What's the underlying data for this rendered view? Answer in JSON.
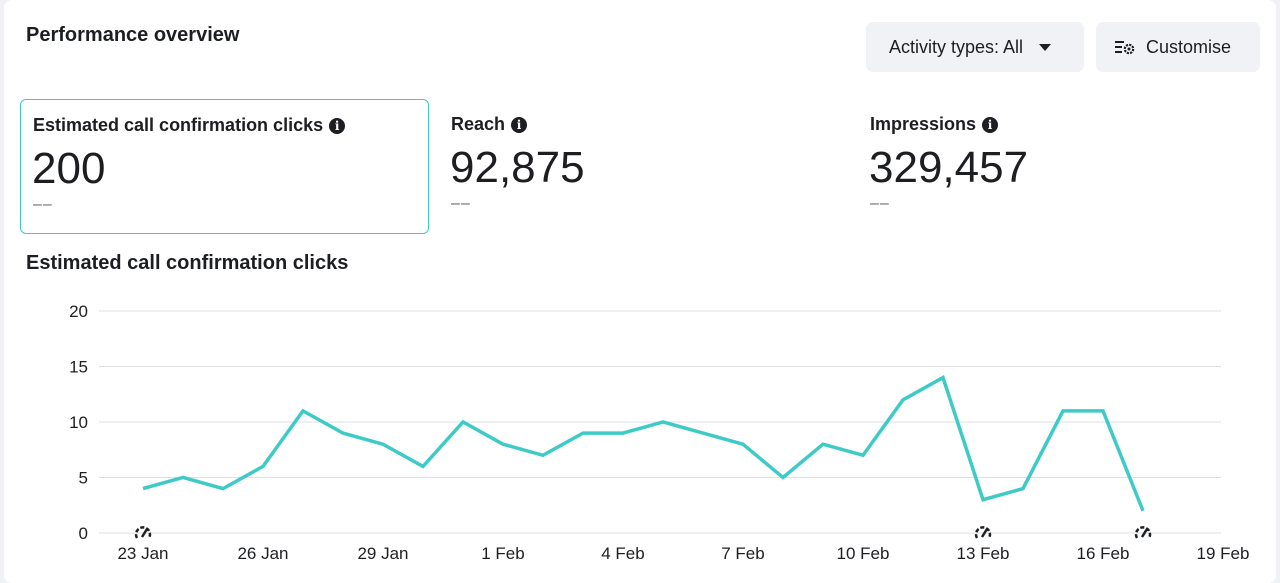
{
  "header": {
    "title": "Performance overview",
    "activity_button": "Activity types: All",
    "customise_button": "Customise"
  },
  "metrics": [
    {
      "label": "Estimated call confirmation clicks",
      "value": "200",
      "delta": "––"
    },
    {
      "label": "Reach",
      "value": "92,875",
      "delta": "––"
    },
    {
      "label": "Impressions",
      "value": "329,457",
      "delta": "––"
    }
  ],
  "colors": {
    "line": "#3ecbc7",
    "grid": "#dddfe2",
    "accent_border": "#3ecbc7"
  },
  "chart_data": {
    "type": "line",
    "title": "Estimated call confirmation clicks",
    "xlabel": "",
    "ylabel": "",
    "ylim": [
      0,
      20
    ],
    "yticks": [
      0,
      5,
      10,
      15,
      20
    ],
    "grid": true,
    "x_tick_labels": [
      "23 Jan",
      "26 Jan",
      "29 Jan",
      "1 Feb",
      "4 Feb",
      "7 Feb",
      "10 Feb",
      "13 Feb",
      "16 Feb",
      "19 Feb"
    ],
    "x": [
      "23 Jan",
      "24 Jan",
      "25 Jan",
      "26 Jan",
      "27 Jan",
      "28 Jan",
      "29 Jan",
      "30 Jan",
      "31 Jan",
      "1 Feb",
      "2 Feb",
      "3 Feb",
      "4 Feb",
      "5 Feb",
      "6 Feb",
      "7 Feb",
      "8 Feb",
      "9 Feb",
      "10 Feb",
      "11 Feb",
      "12 Feb",
      "13 Feb",
      "14 Feb",
      "15 Feb",
      "16 Feb",
      "17 Feb"
    ],
    "series": [
      {
        "values": [
          4,
          5,
          4,
          6,
          11,
          9,
          8,
          6,
          10,
          8,
          7,
          9,
          9,
          10,
          9,
          8,
          5,
          8,
          7,
          12,
          14,
          3,
          4,
          11,
          11,
          2
        ]
      }
    ],
    "annotation_markers": [
      "23 Jan",
      "13 Feb",
      "17 Feb"
    ],
    "annotation_icon": "gauge-icon"
  }
}
